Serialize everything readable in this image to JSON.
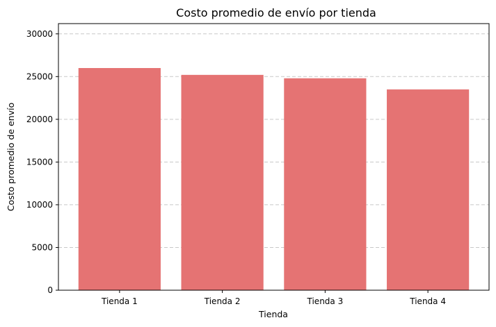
{
  "chart_data": {
    "type": "bar",
    "title": "Costo promedio de envío por tienda",
    "xlabel": "Tienda",
    "ylabel": "Costo promedio de envío",
    "categories": [
      "Tienda 1",
      "Tienda 2",
      "Tienda 3",
      "Tienda 4"
    ],
    "values": [
      26000,
      25200,
      24800,
      23500
    ],
    "ylim": [
      0,
      31200
    ],
    "yticks": [
      0,
      5000,
      10000,
      15000,
      20000,
      25000,
      30000
    ],
    "grid": "y-dashed",
    "bar_color": "#e57373"
  }
}
